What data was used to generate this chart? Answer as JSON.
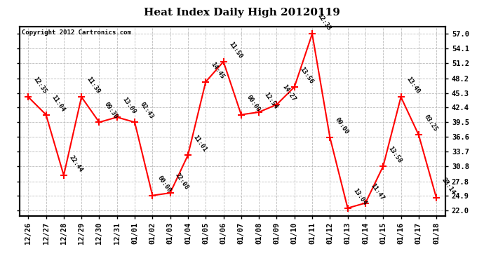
{
  "title": "Heat Index Daily High 20120119",
  "copyright": "Copyright 2012 Cartronics.com",
  "dates": [
    "12/26",
    "12/27",
    "12/28",
    "12/29",
    "12/30",
    "12/31",
    "01/01",
    "01/02",
    "01/03",
    "01/04",
    "01/05",
    "01/06",
    "01/07",
    "01/08",
    "01/09",
    "01/10",
    "01/11",
    "01/12",
    "01/13",
    "01/14",
    "01/15",
    "01/16",
    "01/17",
    "01/18"
  ],
  "values": [
    44.5,
    41.0,
    29.0,
    44.5,
    39.5,
    40.5,
    39.5,
    25.0,
    25.5,
    33.0,
    47.5,
    51.5,
    41.0,
    41.5,
    43.0,
    46.5,
    57.0,
    36.5,
    22.5,
    23.5,
    30.8,
    44.5,
    37.0,
    24.5
  ],
  "labels": [
    "12:35",
    "11:04",
    "22:44",
    "11:39",
    "09:30",
    "13:09",
    "02:43",
    "00:00",
    "22:08",
    "11:01",
    "14:45",
    "11:50",
    "00:00",
    "12:54",
    "14:27",
    "13:56",
    "12:33",
    "00:00",
    "13:04",
    "11:47",
    "13:58",
    "13:40",
    "03:25",
    "23:14"
  ],
  "yticks": [
    22.0,
    24.9,
    27.8,
    30.8,
    33.7,
    36.6,
    39.5,
    42.4,
    45.3,
    48.2,
    51.2,
    54.1,
    57.0
  ],
  "ylim": [
    21.0,
    58.5
  ],
  "line_color": "red",
  "marker_color": "red",
  "background_color": "white",
  "grid_color": "#bbbbbb",
  "title_fontsize": 11,
  "label_fontsize": 6.5,
  "tick_fontsize": 7.5
}
